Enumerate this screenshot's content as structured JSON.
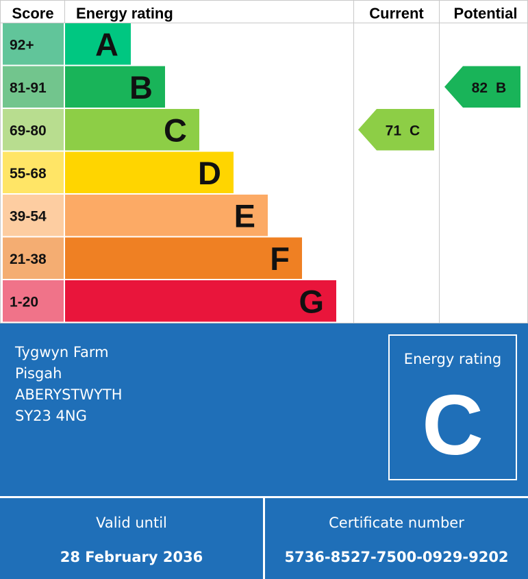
{
  "chart_data": {
    "type": "bar",
    "columns": {
      "score": "Score",
      "rating": "Energy rating",
      "current": "Current",
      "potential": "Potential"
    },
    "bands": [
      {
        "letter": "A",
        "range": "92+",
        "color": "#00c781",
        "score_color": "#61c59a"
      },
      {
        "letter": "B",
        "range": "81-91",
        "color": "#19b459",
        "score_color": "#72c58d"
      },
      {
        "letter": "C",
        "range": "69-80",
        "color": "#8dce46",
        "score_color": "#b8dd8f"
      },
      {
        "letter": "D",
        "range": "55-68",
        "color": "#ffd500",
        "score_color": "#ffe566"
      },
      {
        "letter": "E",
        "range": "39-54",
        "color": "#fcaa65",
        "score_color": "#fdcda1"
      },
      {
        "letter": "F",
        "range": "21-38",
        "color": "#ef8023",
        "score_color": "#f4ad72"
      },
      {
        "letter": "G",
        "range": "1-20",
        "color": "#e9153b",
        "score_color": "#f07389"
      }
    ],
    "current": {
      "value": 71,
      "band": "C",
      "color": "#8dce46"
    },
    "potential": {
      "value": 82,
      "band": "B",
      "color": "#19b459"
    }
  },
  "address": [
    "Tygwyn Farm",
    "Pisgah",
    "ABERYSTWYTH",
    "SY23 4NG"
  ],
  "rating_box": {
    "label": "Energy rating",
    "letter": "C"
  },
  "valid": {
    "label": "Valid until",
    "value": "28 February 2036"
  },
  "certificate": {
    "label": "Certificate number",
    "value": "5736-8527-7500-0929-9202"
  }
}
